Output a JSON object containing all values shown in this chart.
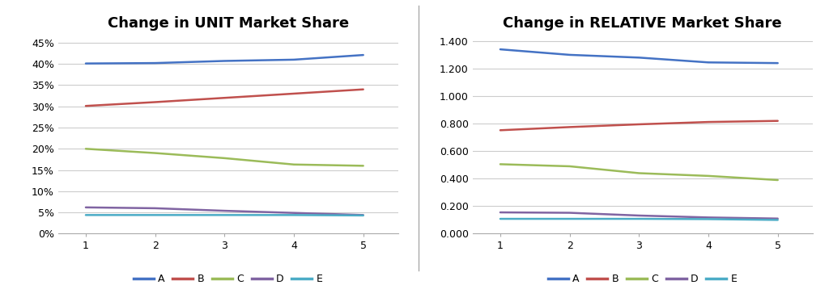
{
  "left_title": "Change in UNIT Market Share",
  "right_title": "Change in RELATIVE Market Share",
  "x": [
    1,
    2,
    3,
    4,
    5
  ],
  "unit_data": {
    "A": [
      0.401,
      0.402,
      0.407,
      0.41,
      0.421
    ],
    "B": [
      0.301,
      0.31,
      0.32,
      0.33,
      0.34
    ],
    "C": [
      0.2,
      0.19,
      0.178,
      0.163,
      0.16
    ],
    "D": [
      0.062,
      0.06,
      0.054,
      0.049,
      0.044
    ],
    "E": [
      0.044,
      0.044,
      0.044,
      0.044,
      0.043
    ]
  },
  "relative_data": {
    "A": [
      1.34,
      1.3,
      1.28,
      1.245,
      1.24
    ],
    "B": [
      0.752,
      0.775,
      0.795,
      0.812,
      0.82
    ],
    "C": [
      0.505,
      0.49,
      0.44,
      0.42,
      0.39
    ],
    "D": [
      0.155,
      0.152,
      0.132,
      0.118,
      0.11
    ],
    "E": [
      0.108,
      0.108,
      0.108,
      0.106,
      0.1
    ]
  },
  "colors": {
    "A": "#4472C4",
    "B": "#C0504D",
    "C": "#9BBB59",
    "D": "#8064A2",
    "E": "#4BACC6"
  },
  "unit_ylim": [
    0.0,
    0.47
  ],
  "unit_yticks": [
    0.0,
    0.05,
    0.1,
    0.15,
    0.2,
    0.25,
    0.3,
    0.35,
    0.4,
    0.45
  ],
  "relative_ylim": [
    0.0,
    1.45
  ],
  "relative_yticks": [
    0.0,
    0.2,
    0.4,
    0.6,
    0.8,
    1.0,
    1.2,
    1.4
  ],
  "xlim": [
    0.6,
    5.5
  ],
  "xticks": [
    1,
    2,
    3,
    4,
    5
  ],
  "legend_labels": [
    "A",
    "B",
    "C",
    "D",
    "E"
  ],
  "background_color": "#FFFFFF",
  "grid_color": "#CCCCCC",
  "title_fontsize": 13,
  "tick_fontsize": 9,
  "legend_fontsize": 9,
  "line_width": 1.8
}
